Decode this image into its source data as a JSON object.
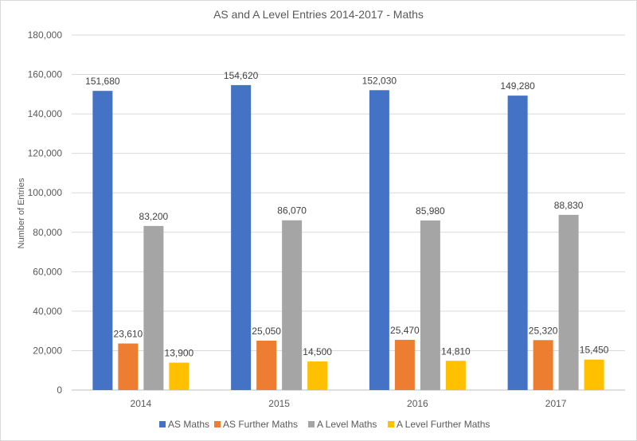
{
  "chart_data": {
    "type": "bar",
    "title": "AS and A Level Entries 2014-2017 - Maths",
    "xlabel": "",
    "ylabel": "Number of Entries",
    "categories": [
      "2014",
      "2015",
      "2016",
      "2017"
    ],
    "ylim": [
      0,
      180000
    ],
    "yticks": [
      "0",
      "20,000",
      "40,000",
      "60,000",
      "80,000",
      "100,000",
      "120,000",
      "140,000",
      "160,000",
      "180,000"
    ],
    "grid": true,
    "legend_position": "bottom",
    "series": [
      {
        "name": "AS Maths",
        "color": "#4472c4",
        "values": [
          151680,
          154620,
          152030,
          149280
        ],
        "labels": [
          "151,680",
          "154,620",
          "152,030",
          "149,280"
        ]
      },
      {
        "name": "AS Further Maths",
        "color": "#ed7d31",
        "values": [
          23610,
          25050,
          25470,
          25320
        ],
        "labels": [
          "23,610",
          "25,050",
          "25,470",
          "25,320"
        ]
      },
      {
        "name": "A Level Maths",
        "color": "#a5a5a5",
        "values": [
          83200,
          86070,
          85980,
          88830
        ],
        "labels": [
          "83,200",
          "86,070",
          "85,980",
          "88,830"
        ]
      },
      {
        "name": "A Level Further Maths",
        "color": "#ffc000",
        "values": [
          13900,
          14500,
          14810,
          15450
        ],
        "labels": [
          "13,900",
          "14,500",
          "14,810",
          "15,450"
        ]
      }
    ]
  }
}
